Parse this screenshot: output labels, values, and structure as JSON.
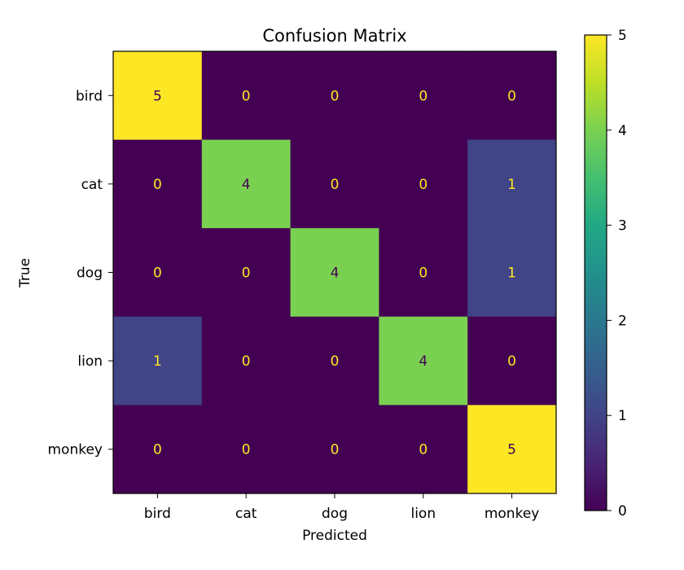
{
  "chart_data": {
    "type": "heatmap",
    "title": "Confusion Matrix",
    "xlabel": "Predicted",
    "ylabel": "True",
    "x_categories": [
      "bird",
      "cat",
      "dog",
      "lion",
      "monkey"
    ],
    "y_categories": [
      "bird",
      "cat",
      "dog",
      "lion",
      "monkey"
    ],
    "values": [
      [
        5,
        0,
        0,
        0,
        0
      ],
      [
        0,
        4,
        0,
        0,
        1
      ],
      [
        0,
        0,
        4,
        0,
        1
      ],
      [
        1,
        0,
        0,
        4,
        0
      ],
      [
        0,
        0,
        0,
        0,
        5
      ]
    ],
    "colormap": "viridis",
    "vmin": 0,
    "vmax": 5,
    "colorbar_ticks": [
      "0",
      "1",
      "2",
      "3",
      "4",
      "5"
    ],
    "text_color_light": "#fde725",
    "text_color_dark": "#440154"
  }
}
